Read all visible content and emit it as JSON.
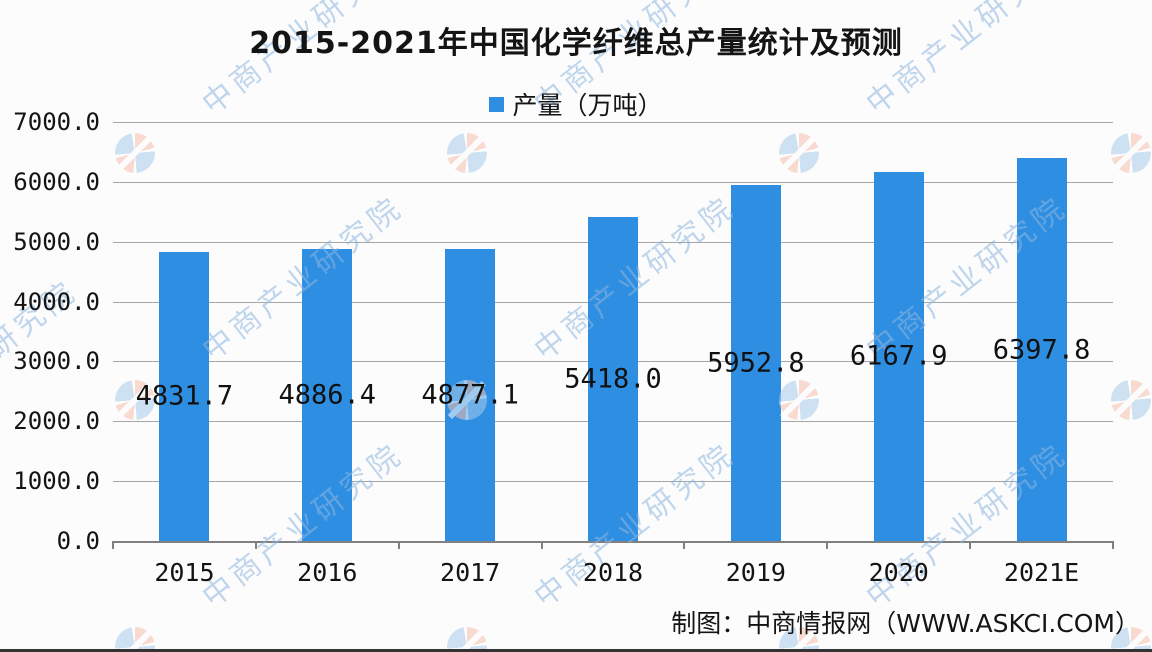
{
  "page": {
    "background": "#fcfcfc"
  },
  "chart_data": {
    "type": "bar",
    "title": "2015-2021年中国化学纤维总产量统计及预测",
    "legend": [
      {
        "label": "产量（万吨）",
        "color": "#2e8fe2"
      }
    ],
    "legend_position": "top-center",
    "categories": [
      "2015",
      "2016",
      "2017",
      "2018",
      "2019",
      "2020",
      "2021E"
    ],
    "series": [
      {
        "name": "产量（万吨）",
        "values": [
          4831.7,
          4886.4,
          4877.1,
          5418.0,
          5952.8,
          6167.9,
          6397.8
        ]
      }
    ],
    "value_label_decimals": 1,
    "xlabel": "",
    "ylabel": "",
    "ylim": [
      0,
      7000
    ],
    "ytick_step": 1000,
    "ytick_decimals": 1,
    "grid": true,
    "bar_color": "#2e8fe2"
  },
  "footer": {
    "credit": "制图：中商情报网（WWW.ASKCI.COM）"
  },
  "watermark": {
    "text": "中商产业研究院",
    "logo": "cbi-compass-logo",
    "text_color": "#8fb6e0"
  }
}
